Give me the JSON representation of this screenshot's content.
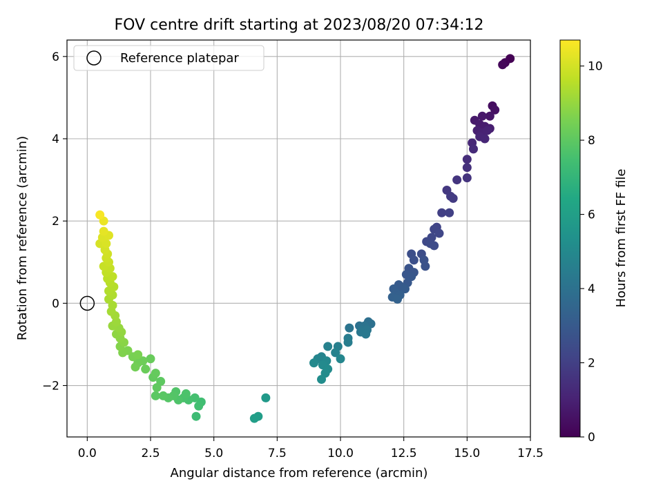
{
  "chart_data": {
    "type": "scatter",
    "title": "FOV centre drift starting at 2023/08/20 07:34:12",
    "xlabel": "Angular distance from reference (arcmin)",
    "ylabel": "Rotation from reference (arcmin)",
    "xlim": [
      -0.8,
      17.5
    ],
    "ylim": [
      -3.25,
      6.4
    ],
    "xticks": [
      0.0,
      2.5,
      5.0,
      7.5,
      10.0,
      12.5,
      15.0,
      17.5
    ],
    "xtick_labels": [
      "0.0",
      "2.5",
      "5.0",
      "7.5",
      "10.0",
      "12.5",
      "15.0",
      "17.5"
    ],
    "yticks": [
      -2,
      0,
      2,
      4,
      6
    ],
    "ytick_labels": [
      "−2",
      "0",
      "2",
      "4",
      "6"
    ],
    "grid": true,
    "legend": {
      "location": "upper left",
      "entries": [
        "Reference platepar"
      ]
    },
    "reference_point": {
      "x": 0,
      "y": 0
    },
    "colorbar": {
      "label": "Hours from first FF file",
      "colormap": "viridis",
      "range": [
        0,
        10.7
      ],
      "ticks": [
        0,
        2,
        4,
        6,
        8,
        10
      ],
      "tick_labels": [
        "0",
        "2",
        "4",
        "6",
        "8",
        "10"
      ]
    },
    "points": [
      {
        "x": 16.7,
        "y": 5.95,
        "t": 0.0
      },
      {
        "x": 16.5,
        "y": 5.85,
        "t": 0.1
      },
      {
        "x": 16.4,
        "y": 5.8,
        "t": 0.2
      },
      {
        "x": 16.0,
        "y": 4.8,
        "t": 0.4
      },
      {
        "x": 16.1,
        "y": 4.7,
        "t": 0.5
      },
      {
        "x": 15.9,
        "y": 4.55,
        "t": 0.6
      },
      {
        "x": 15.6,
        "y": 4.55,
        "t": 0.7
      },
      {
        "x": 15.3,
        "y": 4.45,
        "t": 0.75
      },
      {
        "x": 15.5,
        "y": 4.35,
        "t": 0.8
      },
      {
        "x": 15.7,
        "y": 4.3,
        "t": 0.85
      },
      {
        "x": 15.9,
        "y": 4.25,
        "t": 0.9
      },
      {
        "x": 15.4,
        "y": 4.2,
        "t": 0.95
      },
      {
        "x": 15.6,
        "y": 4.15,
        "t": 1.0
      },
      {
        "x": 15.8,
        "y": 4.2,
        "t": 1.05
      },
      {
        "x": 15.5,
        "y": 4.05,
        "t": 1.1
      },
      {
        "x": 15.7,
        "y": 4.0,
        "t": 1.15
      },
      {
        "x": 15.2,
        "y": 3.9,
        "t": 1.2
      },
      {
        "x": 15.25,
        "y": 3.75,
        "t": 1.3
      },
      {
        "x": 15.0,
        "y": 3.5,
        "t": 1.4
      },
      {
        "x": 15.0,
        "y": 3.3,
        "t": 1.5
      },
      {
        "x": 15.0,
        "y": 3.05,
        "t": 1.6
      },
      {
        "x": 14.6,
        "y": 3.0,
        "t": 1.65
      },
      {
        "x": 14.2,
        "y": 2.75,
        "t": 1.75
      },
      {
        "x": 14.35,
        "y": 2.6,
        "t": 1.8
      },
      {
        "x": 14.45,
        "y": 2.55,
        "t": 1.85
      },
      {
        "x": 14.0,
        "y": 2.2,
        "t": 2.0
      },
      {
        "x": 14.3,
        "y": 2.2,
        "t": 2.05
      },
      {
        "x": 13.8,
        "y": 1.85,
        "t": 2.15
      },
      {
        "x": 13.7,
        "y": 1.8,
        "t": 2.2
      },
      {
        "x": 13.9,
        "y": 1.7,
        "t": 2.25
      },
      {
        "x": 13.6,
        "y": 1.6,
        "t": 2.3
      },
      {
        "x": 13.4,
        "y": 1.5,
        "t": 2.35
      },
      {
        "x": 13.55,
        "y": 1.45,
        "t": 2.4
      },
      {
        "x": 13.7,
        "y": 1.4,
        "t": 2.45
      },
      {
        "x": 13.2,
        "y": 1.2,
        "t": 2.5
      },
      {
        "x": 12.8,
        "y": 1.2,
        "t": 2.55
      },
      {
        "x": 12.9,
        "y": 1.05,
        "t": 2.6
      },
      {
        "x": 13.3,
        "y": 1.05,
        "t": 2.65
      },
      {
        "x": 13.35,
        "y": 0.9,
        "t": 2.7
      },
      {
        "x": 12.7,
        "y": 0.85,
        "t": 2.75
      },
      {
        "x": 12.9,
        "y": 0.75,
        "t": 2.8
      },
      {
        "x": 12.6,
        "y": 0.7,
        "t": 2.85
      },
      {
        "x": 12.8,
        "y": 0.65,
        "t": 2.9
      },
      {
        "x": 12.65,
        "y": 0.5,
        "t": 2.95
      },
      {
        "x": 12.3,
        "y": 0.45,
        "t": 3.0
      },
      {
        "x": 12.4,
        "y": 0.4,
        "t": 3.05
      },
      {
        "x": 12.55,
        "y": 0.35,
        "t": 3.1
      },
      {
        "x": 12.1,
        "y": 0.35,
        "t": 3.15
      },
      {
        "x": 12.2,
        "y": 0.25,
        "t": 3.2
      },
      {
        "x": 12.35,
        "y": 0.2,
        "t": 3.25
      },
      {
        "x": 12.05,
        "y": 0.15,
        "t": 3.3
      },
      {
        "x": 12.25,
        "y": 0.1,
        "t": 3.35
      },
      {
        "x": 11.1,
        "y": -0.45,
        "t": 3.9
      },
      {
        "x": 11.2,
        "y": -0.5,
        "t": 3.95
      },
      {
        "x": 10.75,
        "y": -0.55,
        "t": 4.0
      },
      {
        "x": 10.95,
        "y": -0.55,
        "t": 4.05
      },
      {
        "x": 10.35,
        "y": -0.6,
        "t": 4.1
      },
      {
        "x": 10.85,
        "y": -0.65,
        "t": 4.15
      },
      {
        "x": 11.05,
        "y": -0.65,
        "t": 4.2
      },
      {
        "x": 10.8,
        "y": -0.7,
        "t": 4.25
      },
      {
        "x": 11.0,
        "y": -0.75,
        "t": 4.3
      },
      {
        "x": 10.3,
        "y": -0.85,
        "t": 4.45
      },
      {
        "x": 10.3,
        "y": -0.95,
        "t": 4.5
      },
      {
        "x": 9.9,
        "y": -1.05,
        "t": 4.6
      },
      {
        "x": 9.5,
        "y": -1.05,
        "t": 4.65
      },
      {
        "x": 9.8,
        "y": -1.2,
        "t": 4.7
      },
      {
        "x": 9.25,
        "y": -1.3,
        "t": 4.8
      },
      {
        "x": 9.1,
        "y": -1.35,
        "t": 4.85
      },
      {
        "x": 10.0,
        "y": -1.35,
        "t": 4.9
      },
      {
        "x": 9.45,
        "y": -1.4,
        "t": 4.95
      },
      {
        "x": 8.95,
        "y": -1.45,
        "t": 5.0
      },
      {
        "x": 9.3,
        "y": -1.5,
        "t": 5.05
      },
      {
        "x": 9.5,
        "y": -1.6,
        "t": 5.1
      },
      {
        "x": 9.4,
        "y": -1.7,
        "t": 5.15
      },
      {
        "x": 9.25,
        "y": -1.85,
        "t": 5.2
      },
      {
        "x": 7.05,
        "y": -2.3,
        "t": 5.7
      },
      {
        "x": 6.75,
        "y": -2.75,
        "t": 5.9
      },
      {
        "x": 6.6,
        "y": -2.8,
        "t": 5.95
      },
      {
        "x": 4.3,
        "y": -2.75,
        "t": 7.3
      },
      {
        "x": 4.5,
        "y": -2.4,
        "t": 7.4
      },
      {
        "x": 4.4,
        "y": -2.5,
        "t": 7.45
      },
      {
        "x": 4.25,
        "y": -2.3,
        "t": 7.5
      },
      {
        "x": 4.0,
        "y": -2.35,
        "t": 7.55
      },
      {
        "x": 3.8,
        "y": -2.3,
        "t": 7.6
      },
      {
        "x": 3.9,
        "y": -2.2,
        "t": 7.65
      },
      {
        "x": 3.6,
        "y": -2.35,
        "t": 7.7
      },
      {
        "x": 3.5,
        "y": -2.15,
        "t": 7.75
      },
      {
        "x": 3.4,
        "y": -2.25,
        "t": 7.8
      },
      {
        "x": 3.2,
        "y": -2.3,
        "t": 7.85
      },
      {
        "x": 3.0,
        "y": -2.25,
        "t": 7.9
      },
      {
        "x": 2.7,
        "y": -2.25,
        "t": 7.95
      },
      {
        "x": 2.9,
        "y": -1.9,
        "t": 8.0
      },
      {
        "x": 2.75,
        "y": -2.05,
        "t": 8.05
      },
      {
        "x": 2.6,
        "y": -1.8,
        "t": 8.1
      },
      {
        "x": 2.7,
        "y": -1.7,
        "t": 8.15
      },
      {
        "x": 2.5,
        "y": -1.35,
        "t": 8.2
      },
      {
        "x": 2.3,
        "y": -1.6,
        "t": 8.25
      },
      {
        "x": 2.2,
        "y": -1.4,
        "t": 8.3
      },
      {
        "x": 2.0,
        "y": -1.45,
        "t": 8.35
      },
      {
        "x": 1.9,
        "y": -1.55,
        "t": 8.4
      },
      {
        "x": 1.8,
        "y": -1.3,
        "t": 8.5
      },
      {
        "x": 2.0,
        "y": -1.25,
        "t": 8.55
      },
      {
        "x": 1.6,
        "y": -1.15,
        "t": 8.6
      },
      {
        "x": 1.4,
        "y": -1.2,
        "t": 8.65
      },
      {
        "x": 1.3,
        "y": -1.05,
        "t": 8.7
      },
      {
        "x": 1.45,
        "y": -0.95,
        "t": 8.8
      },
      {
        "x": 1.3,
        "y": -0.85,
        "t": 8.85
      },
      {
        "x": 1.15,
        "y": -0.75,
        "t": 8.9
      },
      {
        "x": 1.35,
        "y": -0.7,
        "t": 8.95
      },
      {
        "x": 1.25,
        "y": -0.6,
        "t": 9.0
      },
      {
        "x": 1.0,
        "y": -0.55,
        "t": 9.05
      },
      {
        "x": 1.15,
        "y": -0.45,
        "t": 9.1
      },
      {
        "x": 1.1,
        "y": -0.3,
        "t": 9.2
      },
      {
        "x": 0.95,
        "y": -0.2,
        "t": 9.25
      },
      {
        "x": 1.0,
        "y": -0.05,
        "t": 9.3
      },
      {
        "x": 0.85,
        "y": 0.1,
        "t": 9.35
      },
      {
        "x": 1.0,
        "y": 0.2,
        "t": 9.4
      },
      {
        "x": 0.85,
        "y": 0.3,
        "t": 9.45
      },
      {
        "x": 1.05,
        "y": 0.4,
        "t": 9.5
      },
      {
        "x": 0.9,
        "y": 0.5,
        "t": 9.55
      },
      {
        "x": 0.8,
        "y": 0.6,
        "t": 9.6
      },
      {
        "x": 1.0,
        "y": 0.65,
        "t": 9.65
      },
      {
        "x": 0.75,
        "y": 0.75,
        "t": 9.7
      },
      {
        "x": 0.9,
        "y": 0.85,
        "t": 9.75
      },
      {
        "x": 0.65,
        "y": 0.9,
        "t": 9.8
      },
      {
        "x": 0.85,
        "y": 1.0,
        "t": 9.85
      },
      {
        "x": 0.75,
        "y": 1.1,
        "t": 9.9
      },
      {
        "x": 0.8,
        "y": 1.2,
        "t": 9.95
      },
      {
        "x": 0.7,
        "y": 1.3,
        "t": 10.0
      },
      {
        "x": 0.5,
        "y": 1.45,
        "t": 10.05
      },
      {
        "x": 0.75,
        "y": 1.45,
        "t": 10.1
      },
      {
        "x": 0.6,
        "y": 1.6,
        "t": 10.15
      },
      {
        "x": 0.85,
        "y": 1.65,
        "t": 10.2
      },
      {
        "x": 0.65,
        "y": 1.75,
        "t": 10.3
      },
      {
        "x": 0.65,
        "y": 2.0,
        "t": 10.4
      },
      {
        "x": 0.5,
        "y": 2.15,
        "t": 10.6
      }
    ]
  }
}
